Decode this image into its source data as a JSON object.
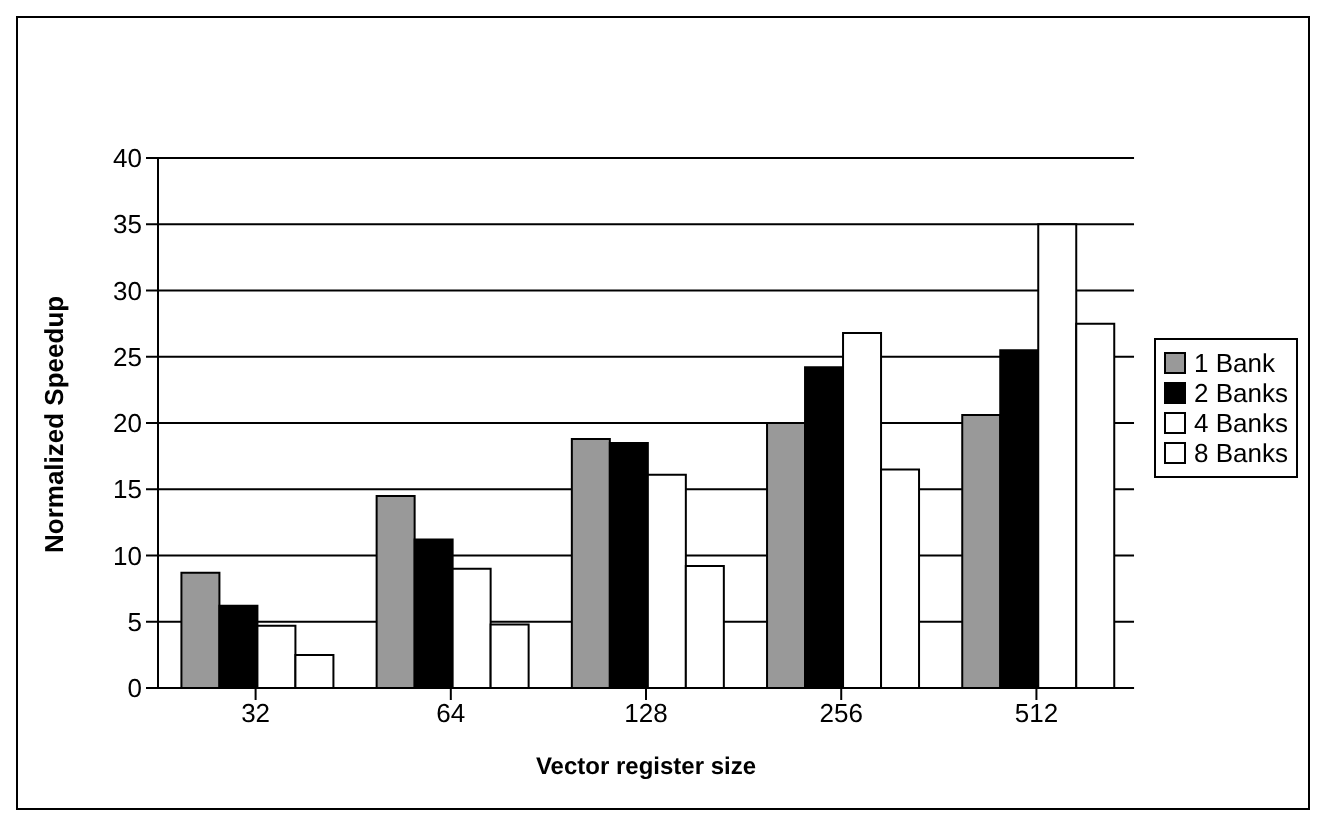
{
  "chart_data": {
    "type": "bar",
    "xlabel": "Vector register size",
    "ylabel": "Normalized Speedup",
    "categories": [
      "32",
      "64",
      "128",
      "256",
      "512"
    ],
    "series": [
      {
        "name": "1 Bank",
        "color": "#999999",
        "values": [
          8.7,
          14.5,
          18.8,
          20,
          20.6
        ]
      },
      {
        "name": "2 Banks",
        "color": "#000000",
        "values": [
          6.2,
          11.2,
          18.5,
          24.2,
          25.5
        ]
      },
      {
        "name": "4 Banks",
        "color": "#ffffff",
        "values": [
          4.7,
          9,
          16.1,
          26.8,
          35
        ]
      },
      {
        "name": "8 Banks",
        "color": "#ffffff",
        "values": [
          2.5,
          4.8,
          9.2,
          16.5,
          27.5
        ]
      }
    ],
    "ylim": [
      0,
      40
    ],
    "yticks": [
      0,
      5,
      10,
      15,
      20,
      25,
      30,
      35,
      40
    ],
    "grid": "y",
    "legend": "right"
  }
}
